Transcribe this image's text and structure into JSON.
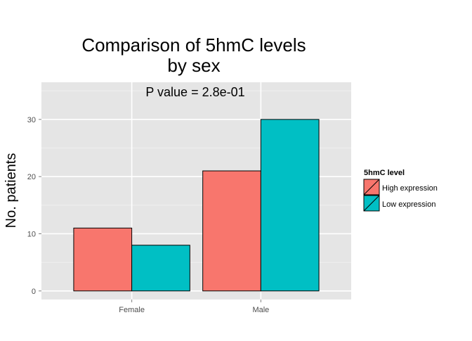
{
  "chart_data": {
    "type": "bar",
    "title_lines": [
      "Comparison of 5hmC levels",
      "by sex"
    ],
    "annotation": "P value = 2.8e-01",
    "xlabel": "",
    "ylabel": "No. patients",
    "categories": [
      "Female",
      "Male"
    ],
    "series": [
      {
        "name": "High expression",
        "color": "#F8766D",
        "values": [
          11,
          21
        ]
      },
      {
        "name": "Low expression",
        "color": "#00BFC4",
        "values": [
          8,
          30
        ]
      }
    ],
    "ylim": [
      -1.5,
      36.5
    ],
    "yticks": [
      0,
      10,
      20,
      30
    ],
    "legend": {
      "title": "5hmC level",
      "placement": "right"
    },
    "panel_background": "#E5E5E5",
    "grid": true
  }
}
